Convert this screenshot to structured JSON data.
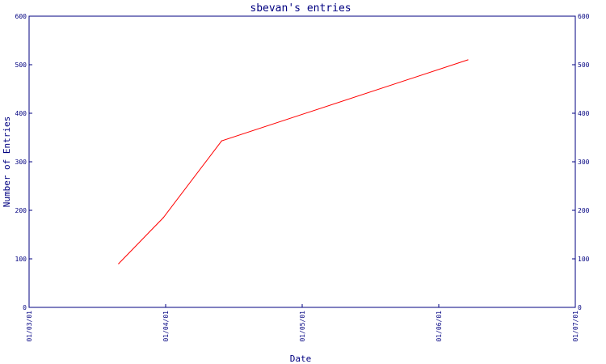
{
  "chart_data": {
    "type": "line",
    "title": "sbevan's entries",
    "xlabel": "Date",
    "ylabel": "Number of Entries",
    "x_ticks": [
      "01/03/01",
      "01/04/01",
      "01/05/01",
      "01/06/01",
      "01/07/01"
    ],
    "y_ticks": [
      0,
      100,
      200,
      300,
      400,
      500,
      600
    ],
    "ylim": [
      0,
      600
    ],
    "xlim": [
      "2001-03-01",
      "2001-07-01"
    ],
    "grid": false,
    "colors": {
      "axis": "#000080",
      "series": "#ff0000"
    },
    "series": [
      {
        "x": [
          "2001-03-21",
          "2001-03-31",
          "2001-04-13",
          "2001-06-07"
        ],
        "y": [
          90,
          185,
          343,
          510
        ]
      }
    ]
  }
}
